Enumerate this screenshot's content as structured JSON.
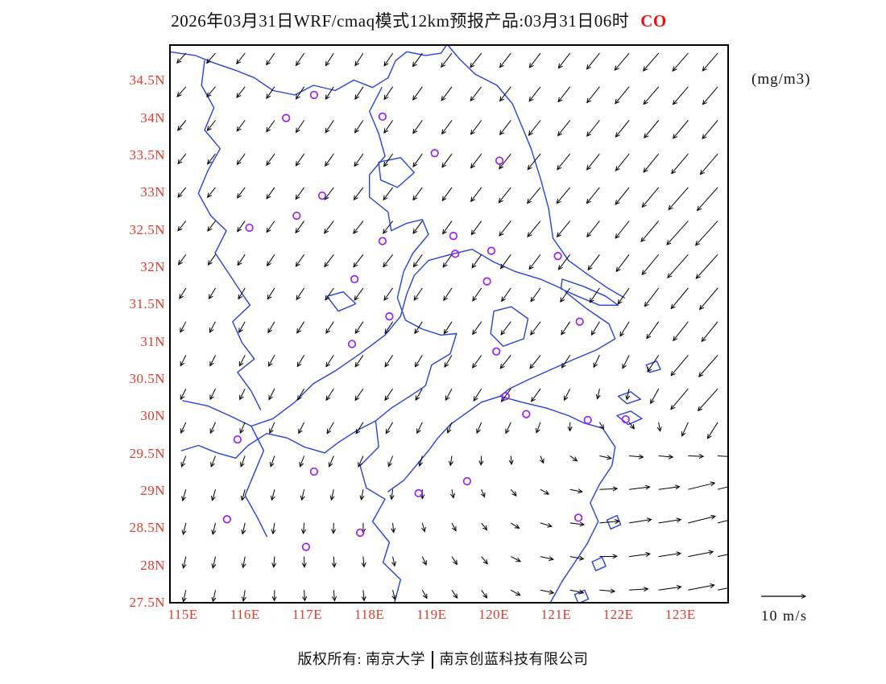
{
  "title": {
    "main": "2026年03月31日WRF/cmaq模式12km预报产品:03月31日06时",
    "species": "CO"
  },
  "units_label": "(mg/m3)",
  "axes": {
    "lon_range": [
      114.78,
      123.78
    ],
    "lat_range": [
      27.5,
      35.0
    ],
    "y_ticks": [
      {
        "label": "34.5N",
        "lat": 34.5
      },
      {
        "label": "34N",
        "lat": 34.0
      },
      {
        "label": "33.5N",
        "lat": 33.5
      },
      {
        "label": "33N",
        "lat": 33.0
      },
      {
        "label": "32.5N",
        "lat": 32.5
      },
      {
        "label": "32N",
        "lat": 32.0
      },
      {
        "label": "31.5N",
        "lat": 31.5
      },
      {
        "label": "31N",
        "lat": 31.0
      },
      {
        "label": "30.5N",
        "lat": 30.5
      },
      {
        "label": "30N",
        "lat": 30.0
      },
      {
        "label": "29.5N",
        "lat": 29.5
      },
      {
        "label": "29N",
        "lat": 29.0
      },
      {
        "label": "28.5N",
        "lat": 28.5
      },
      {
        "label": "28N",
        "lat": 28.0
      },
      {
        "label": "27.5N",
        "lat": 27.5
      }
    ],
    "x_ticks": [
      {
        "label": "115E",
        "lon": 115
      },
      {
        "label": "116E",
        "lon": 116
      },
      {
        "label": "117E",
        "lon": 117
      },
      {
        "label": "118E",
        "lon": 118
      },
      {
        "label": "119E",
        "lon": 119
      },
      {
        "label": "120E",
        "lon": 120
      },
      {
        "label": "121E",
        "lon": 121
      },
      {
        "label": "122E",
        "lon": 122
      },
      {
        "label": "123E",
        "lon": 123
      }
    ]
  },
  "wind_legend": {
    "label": "10 m/s",
    "speed": 10
  },
  "footer": {
    "copyright": "版权所有: 南京大学",
    "company": "南京创蓝科技有限公司"
  },
  "colors": {
    "axis_label": "#e03a2e",
    "species": "#ee1010",
    "map_line": "#2743df",
    "arrow": "#000000",
    "station": "#a020f0",
    "frame": "#000000"
  },
  "stations": [
    [
      117.11,
      34.32
    ],
    [
      116.66,
      34.01
    ],
    [
      118.21,
      34.03
    ],
    [
      119.05,
      33.54
    ],
    [
      120.09,
      33.44
    ],
    [
      117.24,
      32.97
    ],
    [
      116.83,
      32.7
    ],
    [
      116.07,
      32.54
    ],
    [
      118.21,
      32.36
    ],
    [
      119.35,
      32.43
    ],
    [
      119.38,
      32.19
    ],
    [
      119.96,
      32.23
    ],
    [
      121.03,
      32.16
    ],
    [
      117.76,
      31.85
    ],
    [
      119.89,
      31.82
    ],
    [
      118.32,
      31.35
    ],
    [
      121.38,
      31.28
    ],
    [
      117.72,
      30.98
    ],
    [
      120.04,
      30.88
    ],
    [
      120.19,
      30.28
    ],
    [
      120.52,
      30.04
    ],
    [
      121.51,
      29.96
    ],
    [
      122.12,
      29.97
    ],
    [
      115.88,
      29.7
    ],
    [
      117.11,
      29.27
    ],
    [
      119.57,
      29.14
    ],
    [
      118.79,
      28.98
    ],
    [
      115.71,
      28.63
    ],
    [
      121.36,
      28.65
    ],
    [
      117.85,
      28.45
    ],
    [
      116.98,
      28.26
    ]
  ],
  "wind_field": {
    "grid": {
      "lon_start": 115.05,
      "lon_end": 123.6,
      "lon_step": 0.475,
      "lat_start": 27.68,
      "lat_end": 34.88,
      "lat_step": 0.45
    },
    "control_points": [
      {
        "lon": 115.0,
        "lat": 35.0,
        "u": -2.0,
        "v": -2.2
      },
      {
        "lon": 117.5,
        "lat": 34.8,
        "u": -1.8,
        "v": -2.8
      },
      {
        "lon": 120.0,
        "lat": 35.0,
        "u": -2.5,
        "v": -3.2
      },
      {
        "lon": 123.0,
        "lat": 35.0,
        "u": -3.5,
        "v": -4.0
      },
      {
        "lon": 115.0,
        "lat": 33.0,
        "u": -1.8,
        "v": -2.2
      },
      {
        "lon": 118.0,
        "lat": 32.5,
        "u": -2.2,
        "v": -2.8
      },
      {
        "lon": 121.0,
        "lat": 33.0,
        "u": -3.0,
        "v": -3.6
      },
      {
        "lon": 123.5,
        "lat": 32.5,
        "u": -5.0,
        "v": -5.5
      },
      {
        "lon": 115.0,
        "lat": 30.5,
        "u": -1.2,
        "v": -2.4
      },
      {
        "lon": 118.0,
        "lat": 30.5,
        "u": -1.8,
        "v": -2.6
      },
      {
        "lon": 120.5,
        "lat": 30.8,
        "u": -2.4,
        "v": -3.0
      },
      {
        "lon": 123.5,
        "lat": 30.5,
        "u": -4.5,
        "v": -5.0
      },
      {
        "lon": 115.0,
        "lat": 28.0,
        "u": -0.6,
        "v": -2.6
      },
      {
        "lon": 117.5,
        "lat": 27.6,
        "u": 0.2,
        "v": -2.4
      },
      {
        "lon": 119.5,
        "lat": 27.6,
        "u": 1.2,
        "v": -1.8
      },
      {
        "lon": 121.0,
        "lat": 27.8,
        "u": 3.0,
        "v": -0.6
      },
      {
        "lon": 122.2,
        "lat": 28.6,
        "u": 5.0,
        "v": 0.8
      },
      {
        "lon": 123.4,
        "lat": 28.8,
        "u": 6.5,
        "v": 1.8
      },
      {
        "lon": 123.4,
        "lat": 27.6,
        "u": 6.0,
        "v": 1.2
      }
    ]
  },
  "map_outlines": [
    {
      "name": "jiangsu-coast",
      "points": [
        [
          119.25,
          35.0
        ],
        [
          119.45,
          34.8
        ],
        [
          119.7,
          34.6
        ],
        [
          120.05,
          34.45
        ],
        [
          120.3,
          34.2
        ],
        [
          120.45,
          33.9
        ],
        [
          120.6,
          33.6
        ],
        [
          120.75,
          33.2
        ],
        [
          120.88,
          32.8
        ],
        [
          120.95,
          32.4
        ],
        [
          121.2,
          32.1
        ],
        [
          121.5,
          31.92
        ],
        [
          121.85,
          31.72
        ],
        [
          122.1,
          31.6
        ]
      ]
    },
    {
      "name": "chongming-island",
      "points": [
        [
          121.1,
          31.85
        ],
        [
          121.45,
          31.75
        ],
        [
          121.8,
          31.62
        ],
        [
          122.0,
          31.5
        ],
        [
          121.7,
          31.5
        ],
        [
          121.35,
          31.62
        ],
        [
          121.08,
          31.72
        ],
        [
          121.1,
          31.85
        ]
      ]
    },
    {
      "name": "south-coast",
      "points": [
        [
          121.15,
          31.68
        ],
        [
          121.5,
          31.45
        ],
        [
          121.85,
          31.25
        ],
        [
          121.95,
          31.05
        ],
        [
          121.65,
          30.9
        ],
        [
          121.3,
          30.78
        ],
        [
          120.95,
          30.65
        ],
        [
          120.55,
          30.5
        ],
        [
          120.25,
          30.38
        ],
        [
          120.1,
          30.28
        ],
        [
          120.45,
          30.2
        ],
        [
          120.85,
          30.12
        ],
        [
          121.2,
          30.02
        ],
        [
          121.45,
          29.92
        ],
        [
          121.75,
          29.85
        ],
        [
          121.95,
          29.6
        ],
        [
          121.9,
          29.35
        ],
        [
          121.7,
          29.1
        ],
        [
          121.55,
          28.85
        ],
        [
          121.68,
          28.6
        ],
        [
          121.5,
          28.3
        ],
        [
          121.3,
          28.05
        ],
        [
          121.1,
          27.8
        ],
        [
          120.9,
          27.5
        ]
      ]
    },
    {
      "name": "yangtze-river",
      "points": [
        [
          121.1,
          31.72
        ],
        [
          120.75,
          31.85
        ],
        [
          120.35,
          31.95
        ],
        [
          120.0,
          32.08
        ],
        [
          119.65,
          32.25
        ],
        [
          119.3,
          32.18
        ],
        [
          118.95,
          32.1
        ],
        [
          118.72,
          31.9
        ],
        [
          118.6,
          31.65
        ],
        [
          118.5,
          31.35
        ],
        [
          118.25,
          31.1
        ],
        [
          117.85,
          30.85
        ],
        [
          117.45,
          30.62
        ],
        [
          117.1,
          30.45
        ],
        [
          116.8,
          30.2
        ],
        [
          116.45,
          29.98
        ],
        [
          116.1,
          29.88
        ],
        [
          115.75,
          30.02
        ],
        [
          115.4,
          30.15
        ],
        [
          115.0,
          30.22
        ]
      ]
    },
    {
      "name": "shandong-border",
      "points": [
        [
          114.78,
          34.9
        ],
        [
          115.2,
          34.85
        ],
        [
          115.5,
          34.75
        ],
        [
          115.85,
          34.65
        ],
        [
          116.15,
          34.55
        ],
        [
          116.45,
          34.38
        ],
        [
          116.8,
          34.32
        ],
        [
          117.1,
          34.45
        ],
        [
          117.45,
          34.38
        ],
        [
          117.75,
          34.52
        ],
        [
          118.05,
          34.42
        ],
        [
          118.3,
          34.55
        ],
        [
          118.42,
          34.78
        ],
        [
          118.6,
          34.9
        ],
        [
          118.9,
          34.85
        ],
        [
          119.15,
          34.88
        ],
        [
          119.25,
          35.0
        ]
      ]
    },
    {
      "name": "henan-anhui-border",
      "points": [
        [
          115.35,
          34.78
        ],
        [
          115.3,
          34.45
        ],
        [
          115.5,
          34.15
        ],
        [
          115.35,
          33.85
        ],
        [
          115.6,
          33.6
        ],
        [
          115.4,
          33.3
        ],
        [
          115.25,
          33.0
        ],
        [
          115.45,
          32.7
        ],
        [
          115.7,
          32.5
        ],
        [
          115.52,
          32.2
        ],
        [
          115.72,
          31.95
        ],
        [
          115.9,
          31.72
        ],
        [
          116.08,
          31.5
        ],
        [
          115.8,
          31.28
        ],
        [
          115.95,
          31.0
        ],
        [
          116.15,
          30.78
        ],
        [
          115.88,
          30.6
        ],
        [
          116.1,
          30.35
        ],
        [
          116.25,
          30.1
        ]
      ]
    },
    {
      "name": "jiangsu-anhui-border",
      "points": [
        [
          118.2,
          34.42
        ],
        [
          118.0,
          34.1
        ],
        [
          118.15,
          33.8
        ],
        [
          118.25,
          33.5
        ],
        [
          118.0,
          33.25
        ],
        [
          118.0,
          32.95
        ],
        [
          118.3,
          32.75
        ],
        [
          118.35,
          32.5
        ],
        [
          118.6,
          32.6
        ],
        [
          118.85,
          32.65
        ],
        [
          118.95,
          32.45
        ],
        [
          118.7,
          32.2
        ],
        [
          118.55,
          31.95
        ],
        [
          118.45,
          31.6
        ],
        [
          118.58,
          31.3
        ],
        [
          118.85,
          31.18
        ],
        [
          119.15,
          31.1
        ],
        [
          119.4,
          31.12
        ]
      ]
    },
    {
      "name": "anhui-zhejiang-jiangxi-border",
      "points": [
        [
          119.4,
          31.12
        ],
        [
          119.3,
          30.85
        ],
        [
          119.0,
          30.7
        ],
        [
          118.9,
          30.42
        ],
        [
          118.65,
          30.28
        ],
        [
          118.35,
          30.12
        ],
        [
          118.1,
          29.95
        ],
        [
          117.8,
          29.82
        ],
        [
          117.5,
          29.66
        ],
        [
          117.28,
          29.52
        ],
        [
          116.95,
          29.6
        ],
        [
          116.68,
          29.72
        ],
        [
          116.35,
          29.78
        ],
        [
          116.05,
          29.62
        ],
        [
          115.85,
          29.45
        ],
        [
          115.55,
          29.52
        ],
        [
          115.25,
          29.62
        ],
        [
          114.98,
          29.55
        ]
      ]
    },
    {
      "name": "zhejiang-jiangxi-fujian-border",
      "points": [
        [
          118.1,
          29.95
        ],
        [
          118.15,
          29.6
        ],
        [
          117.85,
          29.35
        ],
        [
          117.95,
          29.05
        ],
        [
          118.25,
          28.9
        ],
        [
          118.05,
          28.6
        ],
        [
          118.32,
          28.32
        ],
        [
          118.22,
          28.05
        ],
        [
          118.5,
          27.82
        ],
        [
          118.4,
          27.5
        ]
      ]
    },
    {
      "name": "poyang-outlet",
      "points": [
        [
          116.1,
          29.88
        ],
        [
          116.3,
          29.55
        ],
        [
          116.15,
          29.25
        ],
        [
          116.0,
          28.95
        ],
        [
          116.2,
          28.65
        ],
        [
          116.35,
          28.4
        ]
      ]
    },
    {
      "name": "qiantang-river",
      "points": [
        [
          120.1,
          30.28
        ],
        [
          119.8,
          30.2
        ],
        [
          119.55,
          30.05
        ],
        [
          119.3,
          29.9
        ],
        [
          119.1,
          29.72
        ],
        [
          118.95,
          29.55
        ],
        [
          118.75,
          29.35
        ],
        [
          118.55,
          29.15
        ],
        [
          118.3,
          29.0
        ]
      ]
    },
    {
      "name": "lake-hongze",
      "points": [
        [
          118.15,
          33.42
        ],
        [
          118.5,
          33.48
        ],
        [
          118.72,
          33.28
        ],
        [
          118.45,
          33.08
        ],
        [
          118.18,
          33.18
        ],
        [
          118.15,
          33.42
        ]
      ]
    },
    {
      "name": "lake-taihu",
      "points": [
        [
          120.0,
          31.42
        ],
        [
          120.28,
          31.48
        ],
        [
          120.55,
          31.32
        ],
        [
          120.48,
          31.05
        ],
        [
          120.15,
          30.95
        ],
        [
          119.95,
          31.12
        ],
        [
          120.0,
          31.42
        ]
      ]
    },
    {
      "name": "lake-chaohu",
      "points": [
        [
          117.32,
          31.62
        ],
        [
          117.58,
          31.68
        ],
        [
          117.78,
          31.52
        ],
        [
          117.5,
          31.42
        ],
        [
          117.32,
          31.62
        ]
      ]
    },
    {
      "name": "zhoushan-island-1",
      "points": [
        [
          121.98,
          30.02
        ],
        [
          122.2,
          30.08
        ],
        [
          122.38,
          29.98
        ],
        [
          122.16,
          29.9
        ],
        [
          121.98,
          30.02
        ]
      ]
    },
    {
      "name": "zhoushan-island-2",
      "points": [
        [
          122.0,
          30.28
        ],
        [
          122.2,
          30.34
        ],
        [
          122.36,
          30.24
        ],
        [
          122.14,
          30.18
        ],
        [
          122.0,
          30.28
        ]
      ]
    },
    {
      "name": "island-north",
      "points": [
        [
          122.45,
          30.7
        ],
        [
          122.62,
          30.75
        ],
        [
          122.68,
          30.64
        ],
        [
          122.5,
          30.6
        ],
        [
          122.45,
          30.7
        ]
      ]
    },
    {
      "name": "island-south-1",
      "points": [
        [
          121.82,
          28.62
        ],
        [
          121.98,
          28.68
        ],
        [
          122.04,
          28.56
        ],
        [
          121.88,
          28.5
        ],
        [
          121.82,
          28.62
        ]
      ]
    },
    {
      "name": "island-south-2",
      "points": [
        [
          121.58,
          28.06
        ],
        [
          121.74,
          28.12
        ],
        [
          121.8,
          28.0
        ],
        [
          121.64,
          27.94
        ],
        [
          121.58,
          28.06
        ]
      ]
    },
    {
      "name": "island-south-3",
      "points": [
        [
          121.3,
          27.62
        ],
        [
          121.46,
          27.68
        ],
        [
          121.52,
          27.56
        ],
        [
          121.36,
          27.5
        ],
        [
          121.3,
          27.62
        ]
      ]
    }
  ]
}
